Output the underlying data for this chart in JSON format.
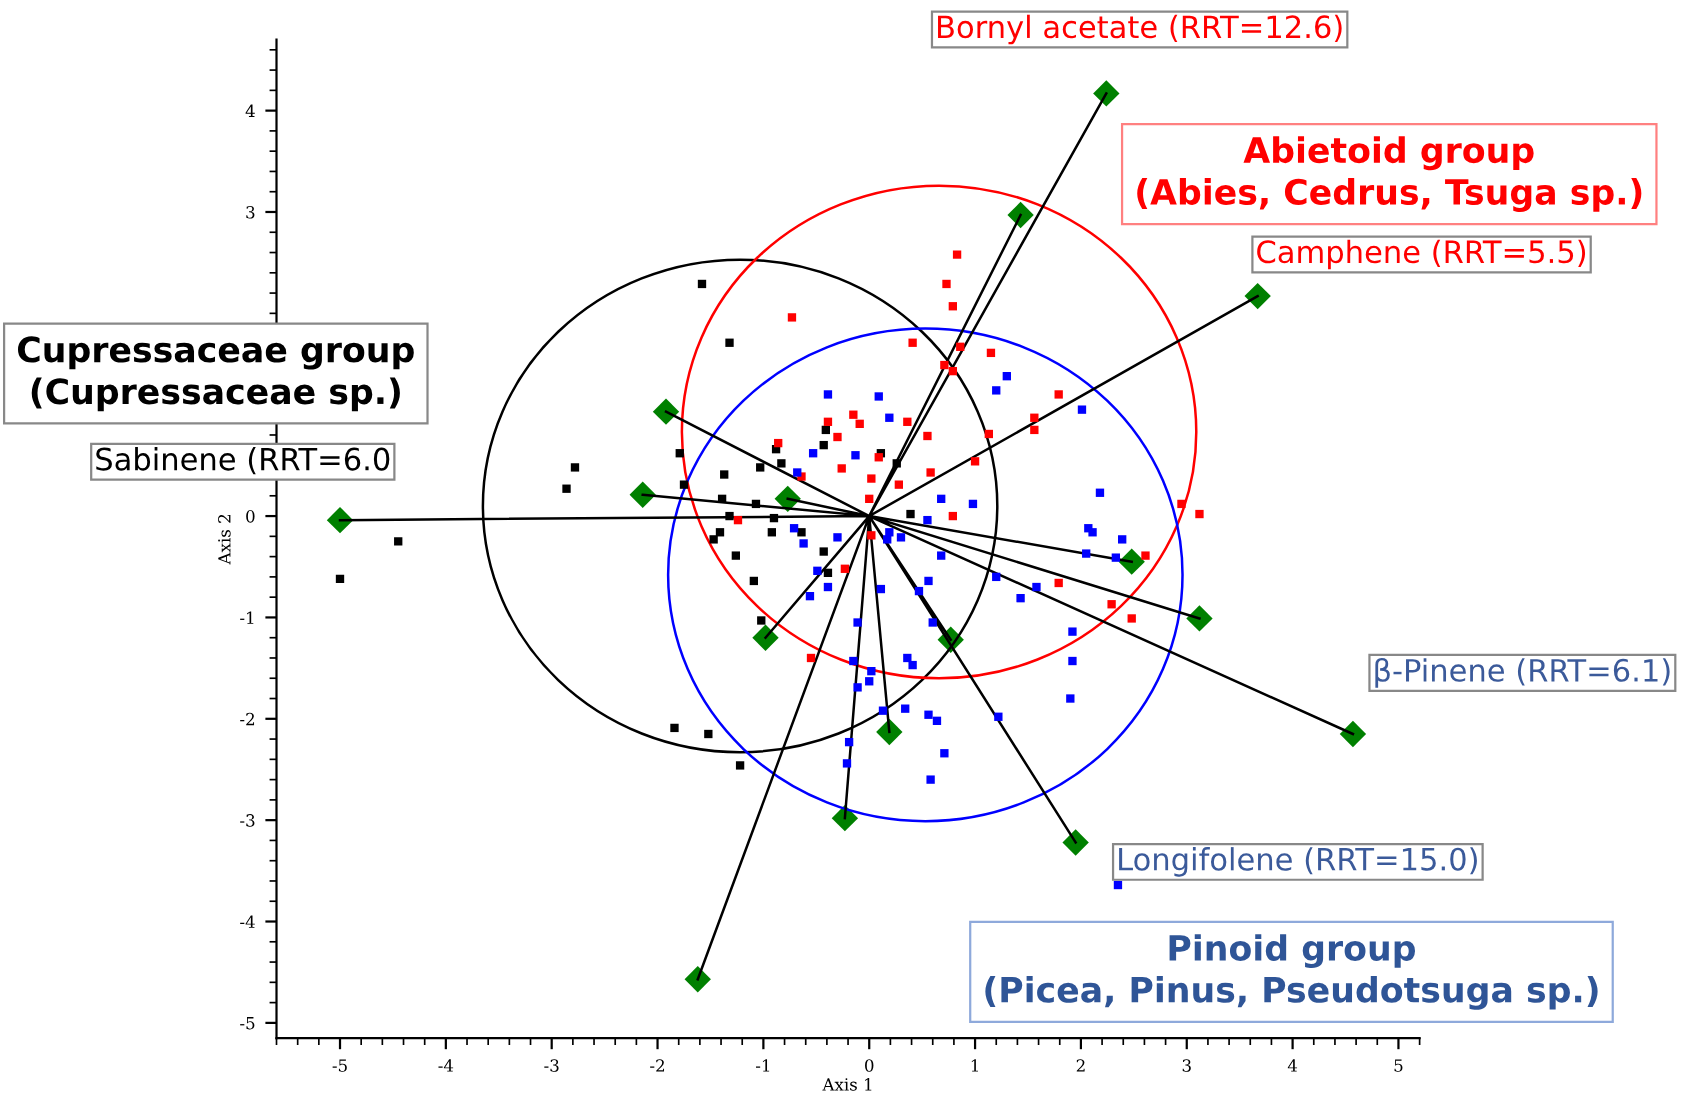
{
  "chart_data": {
    "type": "scatter",
    "xlabel": "Axis 1",
    "ylabel": "Axis 2",
    "xlim": [
      -5.6,
      5.2
    ],
    "ylim": [
      -5.15,
      4.7
    ],
    "xticks": [
      -5,
      -4,
      -3,
      -2,
      -1,
      0,
      1,
      2,
      3,
      4,
      5
    ],
    "yticks": [
      -5,
      -4,
      -3,
      -2,
      -1,
      0,
      3,
      4
    ],
    "series": [
      {
        "color": "#000000",
        "marker": "square",
        "x": [
          -1.58,
          -1.32,
          -2.78,
          -2.86,
          -1.79,
          -1.37,
          -1.75,
          -0.88,
          -0.43,
          -0.83,
          -1.03,
          -1.39,
          -1.07,
          -1.32,
          -1.41,
          -0.9,
          -0.92,
          -1.47,
          -1.26,
          -1.09,
          -1.02,
          -0.64,
          -0.43,
          -0.39,
          -4.45,
          -5.0,
          -1.84,
          -1.52,
          -1.22,
          -0.41,
          0.39,
          0.26,
          0.11
        ],
        "values": [
          2.29,
          1.71,
          0.48,
          0.27,
          0.62,
          0.41,
          0.31,
          0.66,
          0.7,
          0.52,
          0.48,
          0.17,
          0.12,
          0.0,
          -0.16,
          -0.02,
          -0.16,
          -0.23,
          -0.39,
          -0.64,
          -1.03,
          -0.16,
          -0.35,
          -0.56,
          -0.25,
          -0.62,
          -2.09,
          -2.15,
          -2.46,
          0.85,
          0.02,
          0.52,
          0.62
        ]
      },
      {
        "color": "#ff0000",
        "marker": "square",
        "x": [
          -0.73,
          0.83,
          0.73,
          0.79,
          0.41,
          0.86,
          1.15,
          0.71,
          0.79,
          1.56,
          1.13,
          1.79,
          1.56,
          1.0,
          0.58,
          2.95,
          3.12,
          -0.15,
          -0.09,
          -0.3,
          -0.39,
          -0.86,
          -0.64,
          -0.26,
          0.02,
          0.36,
          0.09,
          0.55,
          0.28,
          0.79,
          2.61,
          1.79,
          2.29,
          2.48,
          -1.24,
          -0.23,
          -0.55,
          0.0,
          0.02
        ],
        "values": [
          1.96,
          2.58,
          2.29,
          2.07,
          1.71,
          1.67,
          1.61,
          1.49,
          1.43,
          0.97,
          0.81,
          1.2,
          0.85,
          0.54,
          0.43,
          0.12,
          0.02,
          1.0,
          0.91,
          0.78,
          0.93,
          0.72,
          0.39,
          0.47,
          0.37,
          0.93,
          0.58,
          0.79,
          0.31,
          0.0,
          -0.39,
          -0.66,
          -0.87,
          -1.01,
          -0.04,
          -0.52,
          -1.4,
          0.17,
          -0.19
        ]
      },
      {
        "color": "#0000ff",
        "marker": "square",
        "x": [
          -0.39,
          0.19,
          0.09,
          1.3,
          1.2,
          2.01,
          2.18,
          0.68,
          0.98,
          -0.53,
          -0.68,
          -0.13,
          -0.71,
          -0.62,
          -0.3,
          -0.49,
          -0.56,
          -0.39,
          -0.11,
          -0.15,
          0.02,
          0.0,
          -0.11,
          -0.19,
          0.13,
          -0.21,
          0.17,
          0.3,
          0.19,
          0.56,
          0.68,
          0.47,
          0.6,
          0.36,
          0.41,
          0.34,
          0.64,
          0.56,
          0.71,
          0.58,
          1.22,
          1.58,
          1.43,
          1.92,
          1.92,
          1.9,
          1.2,
          2.07,
          2.11,
          2.33,
          2.39,
          2.05,
          2.35,
          0.11,
          0.55
        ],
        "values": [
          1.2,
          0.97,
          1.18,
          1.38,
          1.24,
          1.05,
          0.23,
          0.17,
          0.12,
          0.62,
          0.43,
          0.6,
          -0.12,
          -0.27,
          -0.21,
          -0.54,
          -0.79,
          -0.7,
          -1.05,
          -1.43,
          -1.53,
          -1.63,
          -1.69,
          -2.23,
          -1.92,
          -2.44,
          -0.23,
          -0.21,
          -0.16,
          -0.64,
          -0.39,
          -0.74,
          -1.05,
          -1.4,
          -1.47,
          -1.9,
          -2.02,
          -1.96,
          -2.34,
          -2.6,
          -1.98,
          -0.7,
          -0.81,
          -1.14,
          -1.43,
          -1.8,
          -0.6,
          -0.12,
          -0.16,
          -0.41,
          -0.23,
          -0.37,
          -3.64,
          -0.72,
          -0.04
        ]
      },
      {
        "type": "line",
        "color": "#000000",
        "marker": "none",
        "x": [
          0,
          2.24,
          null,
          0,
          1.43,
          null,
          0,
          3.67,
          null,
          0,
          -1.92,
          null,
          0,
          -2.14,
          null,
          0,
          -0.77,
          null,
          0,
          -5.0,
          null,
          0,
          2.48,
          null,
          0,
          3.12,
          null,
          0,
          4.57,
          null,
          0,
          0.77,
          null,
          0,
          -0.98,
          null,
          0,
          0.19,
          null,
          0,
          -0.23,
          null,
          0,
          1.95,
          null,
          0,
          -1.62
        ],
        "values": [
          0,
          4.17,
          null,
          0,
          2.97,
          null,
          0,
          2.17,
          null,
          0,
          1.03,
          null,
          0,
          0.21,
          null,
          0,
          0.17,
          null,
          0,
          -0.04,
          null,
          0,
          -0.45,
          null,
          0,
          -1.01,
          null,
          0,
          -2.15,
          null,
          0,
          -1.22,
          null,
          0,
          -1.2,
          null,
          0,
          -2.13,
          null,
          0,
          -2.98,
          null,
          0,
          -3.22,
          null,
          0,
          -4.57
        ]
      },
      {
        "color": "#008000",
        "marker": "diamond",
        "x": [
          2.24,
          1.43,
          3.67,
          -1.92,
          -2.14,
          -0.77,
          -5.0,
          2.48,
          3.12,
          4.57,
          0.77,
          -0.98,
          0.19,
          -0.23,
          1.95,
          -1.62
        ],
        "values": [
          4.17,
          2.97,
          2.17,
          1.03,
          0.21,
          0.17,
          -0.04,
          -0.45,
          -1.01,
          -2.15,
          -1.22,
          -1.2,
          -2.13,
          -2.98,
          -3.22,
          -4.57
        ]
      }
    ],
    "annotations": [
      {
        "text": "Bornyl acetate (RRT=12.6)",
        "x": 2.24,
        "y": 4.17
      },
      {
        "text": "Camphene (RRT=5.5)",
        "x": 3.67,
        "y": 2.17
      },
      {
        "text": "Sabinene (RRT=6.0",
        "x": -5.0,
        "y": -0.04
      },
      {
        "text": "β-Pinene (RRT=6.1)",
        "x": 4.57,
        "y": -2.15
      },
      {
        "text": "Longifolene (RRT=15.0)",
        "x": 1.95,
        "y": -3.22
      },
      "Abietoid group\n(Abies, Cedrus, Tsuga sp.)",
      "Cupressaceae group\n(Cupressaceae sp.)",
      "Pinoid group\n(Picea, Pinus, Pseudotsuga sp.)"
    ]
  }
}
